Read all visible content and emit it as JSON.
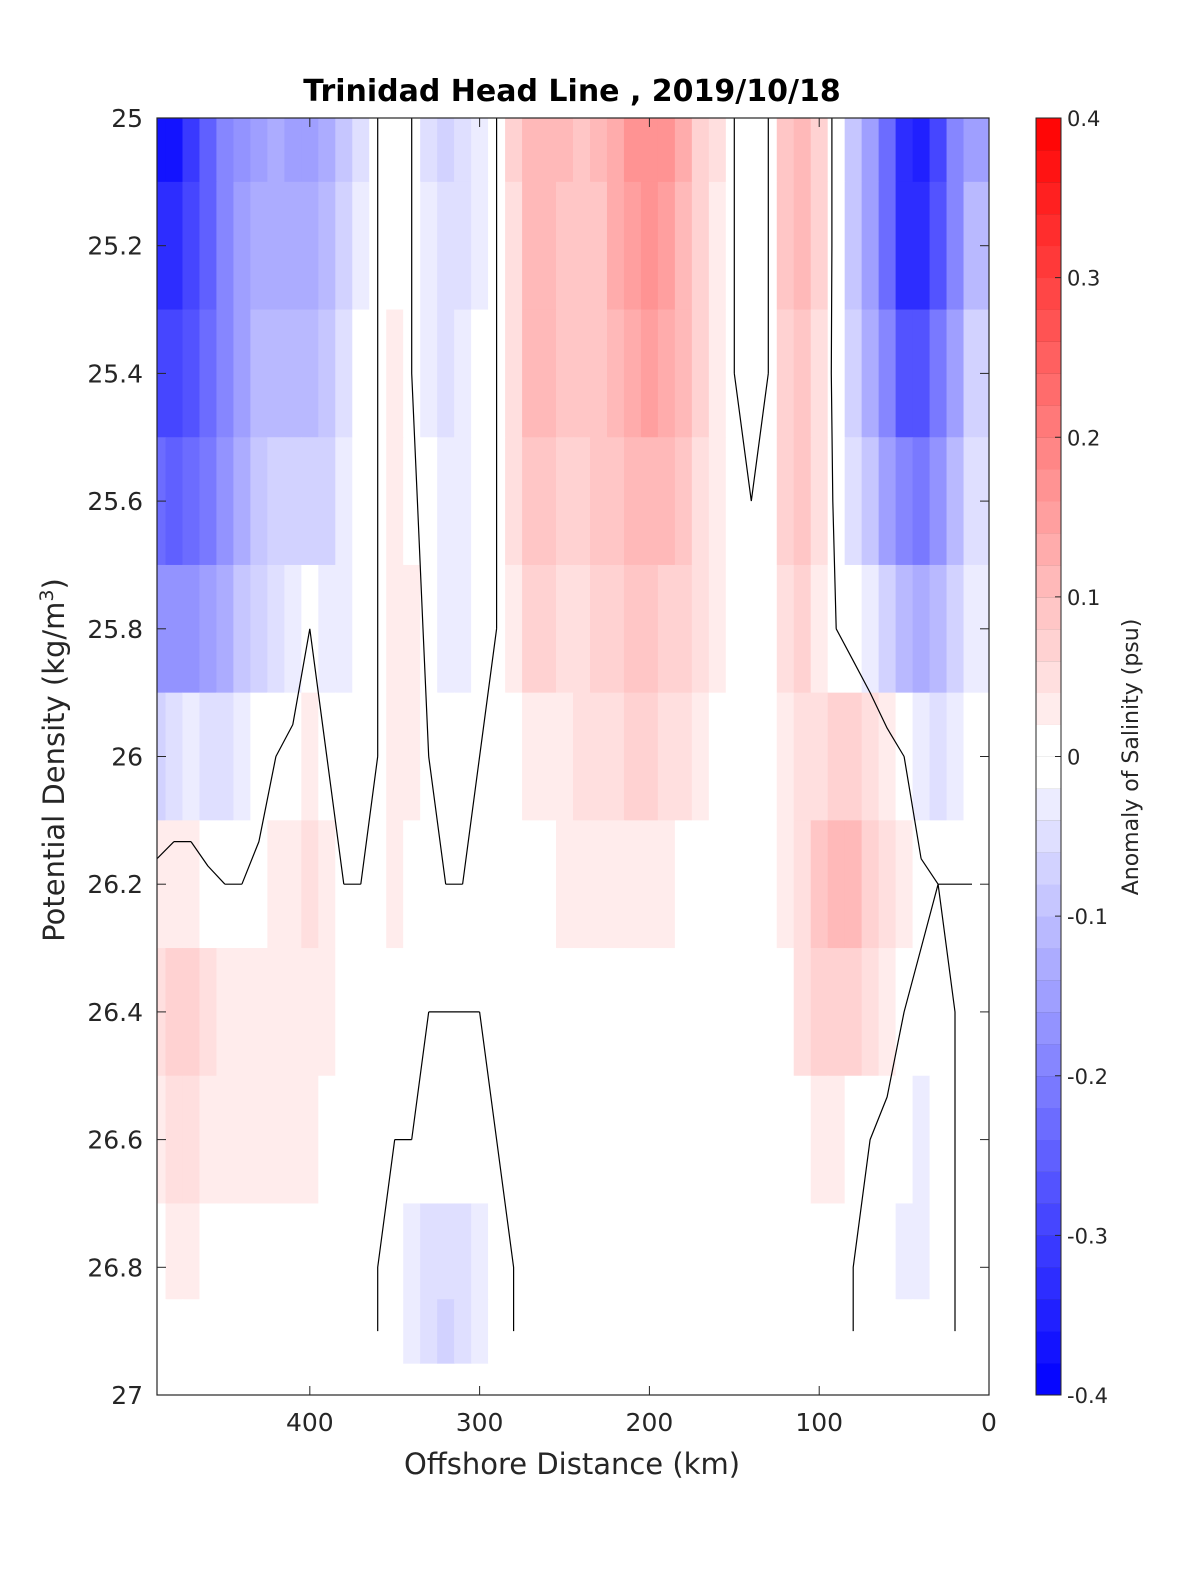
{
  "chart_data": {
    "type": "heatmap",
    "title": "Trinidad Head Line , 2019/10/18",
    "xlabel": "Offshore Distance (km)",
    "ylabel": "Potential Density (kg/m",
    "ylabel_sup": "3",
    "ylabel_end": ")",
    "colorbar_label": "Anomaly of Salinity (psu)",
    "xlim": [
      490,
      0
    ],
    "xticks": [
      400,
      300,
      200,
      100,
      0
    ],
    "xtick_labels": [
      "400",
      "300",
      "200",
      "100",
      "0"
    ],
    "ylim": [
      25,
      27
    ],
    "yticks": [
      25,
      25.2,
      25.4,
      25.6,
      25.8,
      26,
      26.2,
      26.4,
      26.6,
      26.8,
      27
    ],
    "ytick_labels": [
      "25",
      "25.2",
      "25.4",
      "25.6",
      "25.8",
      "26",
      "26.2",
      "26.4",
      "26.6",
      "26.8",
      "27"
    ],
    "clim": [
      -0.4,
      0.4
    ],
    "colorbar_ticks": [
      0.4,
      0.3,
      0.2,
      0.1,
      0,
      -0.1,
      -0.2,
      -0.3,
      -0.4
    ],
    "colorbar_tick_labels": [
      "0.4",
      "0.3",
      "0.2",
      "0.1",
      "0",
      "-0.1",
      "-0.2",
      "-0.3",
      "-0.4"
    ],
    "colorbar_levels": 40,
    "colormap": {
      "negative": "#0000ff",
      "zero": "#ffffff",
      "positive": "#ff0000"
    },
    "contour_level": 0,
    "x": [
      490,
      480,
      470,
      460,
      450,
      440,
      430,
      420,
      410,
      400,
      390,
      380,
      370,
      360,
      350,
      340,
      330,
      320,
      310,
      300,
      290,
      280,
      270,
      260,
      250,
      240,
      230,
      220,
      210,
      200,
      190,
      180,
      170,
      160,
      150,
      140,
      130,
      120,
      110,
      100,
      90,
      80,
      70,
      60,
      50,
      40,
      30,
      20,
      10
    ],
    "y": [
      25.0,
      25.2,
      25.4,
      25.6,
      25.8,
      26.0,
      26.2,
      26.4,
      26.6,
      26.8,
      26.9
    ],
    "z": [
      [
        -0.37,
        -0.38,
        -0.32,
        -0.26,
        -0.2,
        -0.17,
        -0.15,
        -0.14,
        -0.15,
        -0.16,
        -0.14,
        -0.1,
        -0.05,
        0.0,
        0.0,
        0.0,
        -0.05,
        -0.07,
        -0.06,
        -0.04,
        0.0,
        0.06,
        0.1,
        0.11,
        0.1,
        0.09,
        0.1,
        0.13,
        0.16,
        0.17,
        0.16,
        0.12,
        0.07,
        0.04,
        0.0,
        -0.02,
        0.0,
        0.08,
        0.1,
        0.06,
        -0.02,
        -0.1,
        -0.15,
        -0.24,
        -0.34,
        -0.36,
        -0.3,
        -0.2,
        -0.15
      ],
      [
        -0.33,
        -0.34,
        -0.3,
        -0.26,
        -0.2,
        -0.16,
        -0.14,
        -0.13,
        -0.13,
        -0.14,
        -0.12,
        -0.08,
        -0.04,
        0.0,
        0.0,
        0.0,
        -0.04,
        -0.06,
        -0.05,
        -0.03,
        0.0,
        0.05,
        0.1,
        0.11,
        0.09,
        0.08,
        0.09,
        0.12,
        0.15,
        0.16,
        0.15,
        0.11,
        0.06,
        0.03,
        0.0,
        -0.01,
        0.0,
        0.08,
        0.1,
        0.06,
        -0.02,
        -0.1,
        -0.15,
        -0.23,
        -0.33,
        -0.34,
        -0.28,
        -0.2,
        -0.12
      ],
      [
        -0.29,
        -0.3,
        -0.27,
        -0.24,
        -0.19,
        -0.15,
        -0.12,
        -0.11,
        -0.11,
        -0.12,
        -0.1,
        -0.06,
        -0.02,
        0.0,
        0.02,
        0.0,
        -0.03,
        -0.05,
        -0.04,
        -0.02,
        0.0,
        0.05,
        0.1,
        0.1,
        0.08,
        0.08,
        0.09,
        0.11,
        0.13,
        0.14,
        0.13,
        0.1,
        0.06,
        0.03,
        0.0,
        -0.01,
        0.0,
        0.07,
        0.09,
        0.05,
        -0.02,
        -0.08,
        -0.13,
        -0.2,
        -0.27,
        -0.28,
        -0.22,
        -0.15,
        -0.08
      ],
      [
        -0.24,
        -0.25,
        -0.23,
        -0.21,
        -0.17,
        -0.13,
        -0.1,
        -0.08,
        -0.07,
        -0.08,
        -0.07,
        -0.04,
        -0.01,
        0.0,
        0.03,
        0.01,
        -0.02,
        -0.04,
        -0.03,
        -0.01,
        0.0,
        0.04,
        0.08,
        0.08,
        0.07,
        0.07,
        0.08,
        0.09,
        0.1,
        0.11,
        0.1,
        0.08,
        0.05,
        0.03,
        0.0,
        0.0,
        0.0,
        0.06,
        0.08,
        0.04,
        -0.01,
        -0.06,
        -0.1,
        -0.15,
        -0.2,
        -0.22,
        -0.18,
        -0.12,
        -0.06
      ],
      [
        -0.17,
        -0.18,
        -0.17,
        -0.16,
        -0.13,
        -0.1,
        -0.07,
        -0.05,
        -0.03,
        0.0,
        -0.03,
        -0.03,
        -0.01,
        0.0,
        0.03,
        0.02,
        -0.01,
        -0.03,
        -0.03,
        -0.01,
        0.0,
        0.03,
        0.06,
        0.06,
        0.05,
        0.05,
        0.06,
        0.07,
        0.08,
        0.08,
        0.07,
        0.06,
        0.04,
        0.02,
        0.0,
        0.0,
        0.0,
        0.04,
        0.06,
        0.03,
        0.0,
        -0.02,
        -0.04,
        -0.07,
        -0.12,
        -0.14,
        -0.12,
        -0.08,
        -0.04
      ],
      [
        -0.08,
        -0.06,
        -0.04,
        -0.06,
        -0.05,
        -0.04,
        -0.02,
        0.0,
        0.01,
        0.02,
        0.0,
        -0.02,
        -0.01,
        0.0,
        0.03,
        0.02,
        0.0,
        -0.01,
        -0.01,
        0.0,
        0.0,
        0.01,
        0.03,
        0.03,
        0.03,
        0.04,
        0.05,
        0.05,
        0.06,
        0.06,
        0.05,
        0.04,
        0.02,
        0.01,
        0.0,
        0.0,
        0.0,
        0.03,
        0.05,
        0.05,
        0.06,
        0.06,
        0.04,
        0.02,
        0.0,
        -0.04,
        -0.05,
        -0.04,
        -0.02
      ],
      [
        0.02,
        0.03,
        0.02,
        0.01,
        0.0,
        0.0,
        0.01,
        0.02,
        0.03,
        0.04,
        0.02,
        0.0,
        0.0,
        0.0,
        0.02,
        0.01,
        0.0,
        0.0,
        0.0,
        0.0,
        0.0,
        0.0,
        0.01,
        0.01,
        0.02,
        0.02,
        0.03,
        0.03,
        0.03,
        0.03,
        0.02,
        0.01,
        0.0,
        0.0,
        0.0,
        0.0,
        0.0,
        0.02,
        0.05,
        0.08,
        0.1,
        0.1,
        0.07,
        0.04,
        0.02,
        0.01,
        0.0,
        0.0,
        0.0
      ],
      [
        0.04,
        0.06,
        0.07,
        0.05,
        0.03,
        0.02,
        0.02,
        0.03,
        0.03,
        0.03,
        0.02,
        0.01,
        0.0,
        0.0,
        0.0,
        0.0,
        0.0,
        0.0,
        0.0,
        0.0,
        0.0,
        0.0,
        0.01,
        0.0,
        0.0,
        0.0,
        0.0,
        0.0,
        0.0,
        0.0,
        0.0,
        0.0,
        0.0,
        0.0,
        0.0,
        0.0,
        0.0,
        0.01,
        0.04,
        0.06,
        0.07,
        0.06,
        0.04,
        0.02,
        0.0,
        -0.01,
        -0.01,
        0.0,
        0.0
      ],
      [
        0.03,
        0.04,
        0.04,
        0.03,
        0.02,
        0.02,
        0.02,
        0.03,
        0.02,
        0.02,
        0.01,
        0.0,
        0.0,
        0.0,
        0.0,
        0.0,
        -0.01,
        -0.02,
        -0.02,
        -0.01,
        0.0,
        0.0,
        0.0,
        0.0,
        0.0,
        0.0,
        0.0,
        0.0,
        0.0,
        0.0,
        0.0,
        0.0,
        0.0,
        0.0,
        0.0,
        0.0,
        0.0,
        0.0,
        0.01,
        0.02,
        0.02,
        0.01,
        0.0,
        -0.01,
        -0.02,
        -0.03,
        -0.02,
        0.0,
        0.0
      ],
      [
        0.01,
        0.02,
        0.02,
        0.01,
        0.01,
        0.01,
        0.01,
        0.01,
        0.01,
        0.01,
        0.0,
        0.0,
        0.0,
        0.0,
        -0.01,
        -0.03,
        -0.05,
        -0.06,
        -0.05,
        -0.03,
        -0.01,
        0.0,
        0.0,
        0.0,
        0.0,
        0.0,
        0.0,
        0.0,
        0.0,
        0.0,
        0.0,
        0.0,
        0.0,
        0.0,
        0.0,
        0.0,
        0.0,
        0.0,
        0.0,
        0.0,
        0.0,
        0.0,
        -0.01,
        -0.02,
        -0.03,
        -0.03,
        -0.02,
        0.0,
        0.0
      ],
      [
        0.01,
        0.01,
        0.01,
        0.01,
        0.01,
        0.01,
        0.01,
        0.01,
        0.01,
        0.01,
        0.0,
        0.0,
        0.0,
        0.0,
        -0.01,
        -0.03,
        -0.06,
        -0.07,
        -0.05,
        -0.03,
        -0.01,
        0.0,
        0.0,
        0.0,
        0.0,
        0.0,
        0.0,
        0.0,
        0.0,
        0.0,
        0.0,
        0.0,
        0.0,
        0.0,
        0.0,
        0.0,
        0.0,
        0.0,
        0.0,
        0.0,
        0.0,
        0.0,
        -0.01,
        -0.02,
        -0.02,
        -0.02,
        -0.01,
        0.0,
        0.0
      ]
    ]
  }
}
